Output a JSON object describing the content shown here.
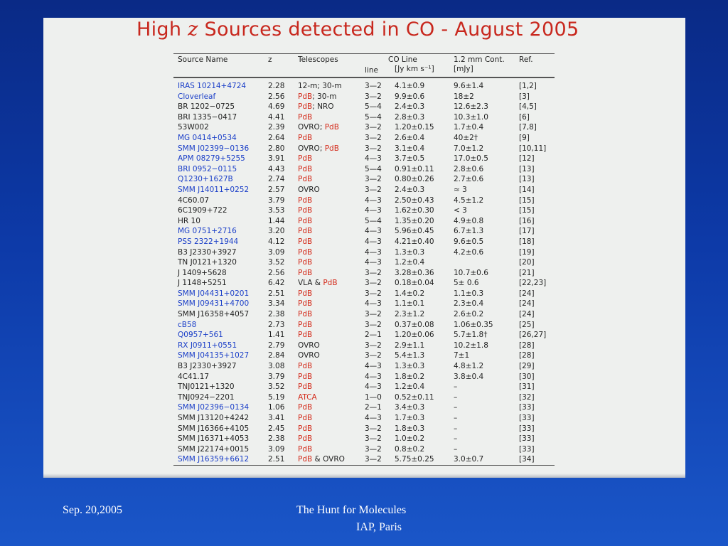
{
  "slide": {
    "title_pre": "High ",
    "title_z": "z",
    "title_post": " Sources detected in CO - August 2005"
  },
  "table": {
    "headers": {
      "source": "Source Name",
      "z": "z",
      "telescopes": "Telescopes",
      "co_line": "CO Line",
      "line": "line",
      "flux_unit": "[Jy km s⁻¹]",
      "cont": "1.2 mm Cont.",
      "cont_unit": "[mJy]",
      "ref": "Ref."
    },
    "rows": [
      {
        "name": "IRAS 10214+4724",
        "blue": true,
        "z": "2.28",
        "tel": [
          {
            "t": "12-m; 30-m",
            "c": ""
          }
        ],
        "line": "3—2",
        "flux": "4.1±0.9",
        "cont": "9.6±1.4",
        "ref": "[1,2]"
      },
      {
        "name": "Cloverleaf",
        "blue": true,
        "z": "2.56",
        "tel": [
          {
            "t": "PdB",
            "c": "red"
          },
          {
            "t": "; 30-m",
            "c": ""
          }
        ],
        "line": "3—2",
        "flux": "9.9±0.6",
        "cont": "18±2",
        "ref": "[3]"
      },
      {
        "name": "BR 1202−0725",
        "blue": false,
        "z": "4.69",
        "tel": [
          {
            "t": "PdB",
            "c": "red"
          },
          {
            "t": "; NRO",
            "c": ""
          }
        ],
        "line": "5—4",
        "flux": "2.4±0.3",
        "cont": "12.6±2.3",
        "ref": "[4,5]"
      },
      {
        "name": "BRI 1335−0417",
        "blue": false,
        "z": "4.41",
        "tel": [
          {
            "t": "PdB",
            "c": "red"
          }
        ],
        "line": "5—4",
        "flux": "2.8±0.3",
        "cont": "10.3±1.0",
        "ref": "[6]"
      },
      {
        "name": "53W002",
        "blue": false,
        "z": "2.39",
        "tel": [
          {
            "t": "OVRO; ",
            "c": ""
          },
          {
            "t": "PdB",
            "c": "red"
          }
        ],
        "line": "3—2",
        "flux": "1.20±0.15",
        "cont": "1.7±0.4",
        "ref": "[7,8]"
      },
      {
        "name": "MG 0414+0534",
        "blue": true,
        "z": "2.64",
        "tel": [
          {
            "t": "PdB",
            "c": "red"
          }
        ],
        "line": "3—2",
        "flux": "2.6±0.4",
        "cont": "40±2†",
        "ref": "[9]"
      },
      {
        "name": "SMM J02399−0136",
        "blue": true,
        "z": "2.80",
        "tel": [
          {
            "t": "OVRO; ",
            "c": ""
          },
          {
            "t": "PdB",
            "c": "red"
          }
        ],
        "line": "3—2",
        "flux": "3.1±0.4",
        "cont": "7.0±1.2",
        "ref": "[10,11]"
      },
      {
        "name": "APM 08279+5255",
        "blue": true,
        "z": "3.91",
        "tel": [
          {
            "t": "PdB",
            "c": "red"
          }
        ],
        "line": "4—3",
        "flux": "3.7±0.5",
        "cont": "17.0±0.5",
        "ref": "[12]"
      },
      {
        "name": "BRI 0952−0115",
        "blue": true,
        "z": "4.43",
        "tel": [
          {
            "t": "PdB",
            "c": "red"
          }
        ],
        "line": "5—4",
        "flux": "0.91±0.11",
        "cont": "2.8±0.6",
        "ref": "[13]"
      },
      {
        "name": "Q1230+1627B",
        "blue": true,
        "z": "2.74",
        "tel": [
          {
            "t": "PdB",
            "c": "red"
          }
        ],
        "line": "3—2",
        "flux": "0.80±0.26",
        "cont": "2.7±0.6",
        "ref": "[13]"
      },
      {
        "name": "SMM J14011+0252",
        "blue": true,
        "z": "2.57",
        "tel": [
          {
            "t": "OVRO",
            "c": ""
          }
        ],
        "line": "3—2",
        "flux": "2.4±0.3",
        "cont": "≈ 3",
        "ref": "[14]"
      },
      {
        "name": "4C60.07",
        "blue": false,
        "z": "3.79",
        "tel": [
          {
            "t": "PdB",
            "c": "red"
          }
        ],
        "line": "4—3",
        "flux": "2.50±0.43",
        "cont": "4.5±1.2",
        "ref": "[15]"
      },
      {
        "name": "6C1909+722",
        "blue": false,
        "z": "3.53",
        "tel": [
          {
            "t": "PdB",
            "c": "red"
          }
        ],
        "line": "4—3",
        "flux": "1.62±0.30",
        "cont": "< 3",
        "ref": "[15]"
      },
      {
        "name": "HR 10",
        "blue": false,
        "z": "1.44",
        "tel": [
          {
            "t": "PdB",
            "c": "red"
          }
        ],
        "line": "5—4",
        "flux": "1.35±0.20",
        "cont": "4.9±0.8",
        "ref": "[16]"
      },
      {
        "name": "MG 0751+2716",
        "blue": true,
        "z": "3.20",
        "tel": [
          {
            "t": "PdB",
            "c": "red"
          }
        ],
        "line": "4—3",
        "flux": "5.96±0.45",
        "cont": "6.7±1.3",
        "ref": "[17]"
      },
      {
        "name": "PSS 2322+1944",
        "blue": true,
        "z": "4.12",
        "tel": [
          {
            "t": "PdB",
            "c": "red"
          }
        ],
        "line": "4—3",
        "flux": "4.21±0.40",
        "cont": "9.6±0.5",
        "ref": "[18]"
      },
      {
        "name": "B3 J2330+3927",
        "blue": false,
        "z": "3.09",
        "tel": [
          {
            "t": "PdB",
            "c": "red"
          }
        ],
        "line": "4—3",
        "flux": "1.3±0.3",
        "cont": "4.2±0.6",
        "ref": "[19]"
      },
      {
        "name": "TN J0121+1320",
        "blue": false,
        "z": "3.52",
        "tel": [
          {
            "t": "PdB",
            "c": "red"
          }
        ],
        "line": "4—3",
        "flux": "1.2±0.4",
        "cont": "",
        "ref": "[20]"
      },
      {
        "name": "J 1409+5628",
        "blue": false,
        "z": "2.56",
        "tel": [
          {
            "t": "PdB",
            "c": "red"
          }
        ],
        "line": "3—2",
        "flux": "3.28±0.36",
        "cont": "10.7±0.6",
        "ref": "[21]"
      },
      {
        "name": "J 1148+5251",
        "blue": false,
        "z": "6.42",
        "tel": [
          {
            "t": "VLA & ",
            "c": ""
          },
          {
            "t": "PdB",
            "c": "red"
          }
        ],
        "line": "3—2",
        "flux": "0.18±0.04",
        "cont": "5± 0.6",
        "ref": "[22,23]"
      },
      {
        "name": "SMM J04431+0201",
        "blue": true,
        "z": "2.51",
        "tel": [
          {
            "t": "PdB",
            "c": "red"
          }
        ],
        "line": "3—2",
        "flux": "1.4±0.2",
        "cont": "1.1±0.3",
        "ref": "[24]"
      },
      {
        "name": "SMM J09431+4700",
        "blue": true,
        "z": "3.34",
        "tel": [
          {
            "t": "PdB",
            "c": "red"
          }
        ],
        "line": "4—3",
        "flux": "1.1±0.1",
        "cont": "2.3±0.4",
        "ref": "[24]"
      },
      {
        "name": "SMM J16358+4057",
        "blue": false,
        "z": "2.38",
        "tel": [
          {
            "t": "PdB",
            "c": "red"
          }
        ],
        "line": "3—2",
        "flux": "2.3±1.2",
        "cont": "2.6±0.2",
        "ref": "[24]"
      },
      {
        "name": "cB58",
        "blue": true,
        "z": "2.73",
        "tel": [
          {
            "t": "PdB",
            "c": "red"
          }
        ],
        "line": "3—2",
        "flux": "0.37±0.08",
        "cont": "1.06±0.35",
        "ref": "[25]"
      },
      {
        "name": "Q0957+561",
        "blue": true,
        "z": "1.41",
        "tel": [
          {
            "t": "PdB",
            "c": "red"
          }
        ],
        "line": "2—1",
        "flux": "1.20±0.06",
        "cont": "5.7±1.8†",
        "ref": "[26,27]"
      },
      {
        "name": "RX J0911+0551",
        "blue": true,
        "z": "2.79",
        "tel": [
          {
            "t": "OVRO",
            "c": ""
          }
        ],
        "line": "3—2",
        "flux": "2.9±1.1",
        "cont": "10.2±1.8",
        "ref": "[28]"
      },
      {
        "name": "SMM J04135+1027",
        "blue": true,
        "z": "2.84",
        "tel": [
          {
            "t": "OVRO",
            "c": ""
          }
        ],
        "line": "3—2",
        "flux": "5.4±1.3",
        "cont": "7±1",
        "ref": "[28]"
      },
      {
        "name": "B3 J2330+3927",
        "blue": false,
        "z": "3.08",
        "tel": [
          {
            "t": "PdB",
            "c": "red"
          }
        ],
        "line": "4—3",
        "flux": "1.3±0.3",
        "cont": "4.8±1.2",
        "ref": "[29]"
      },
      {
        "name": "4C41.17",
        "blue": false,
        "z": "3.79",
        "tel": [
          {
            "t": "PdB",
            "c": "red"
          }
        ],
        "line": "4—3",
        "flux": "1.8±0.2",
        "cont": "3.8±0.4",
        "ref": "[30]"
      },
      {
        "name": "TNJ0121+1320",
        "blue": false,
        "z": "3.52",
        "tel": [
          {
            "t": "PdB",
            "c": "red"
          }
        ],
        "line": "4—3",
        "flux": "1.2±0.4",
        "cont": "–",
        "ref": "[31]"
      },
      {
        "name": "TNJ0924−2201",
        "blue": false,
        "z": "5.19",
        "tel": [
          {
            "t": "ATCA",
            "c": "red"
          }
        ],
        "line": "1—0",
        "flux": "0.52±0.11",
        "cont": "–",
        "ref": "[32]"
      },
      {
        "name": "SMM J02396−0134",
        "blue": true,
        "z": "1.06",
        "tel": [
          {
            "t": "PdB",
            "c": "red"
          }
        ],
        "line": "2—1",
        "flux": "3.4±0.3",
        "cont": "–",
        "ref": "[33]"
      },
      {
        "name": "SMM J13120+4242",
        "blue": false,
        "z": "3.41",
        "tel": [
          {
            "t": "PdB",
            "c": "red"
          }
        ],
        "line": "4—3",
        "flux": "1.7±0.3",
        "cont": "–",
        "ref": "[33]"
      },
      {
        "name": "SMM J16366+4105",
        "blue": false,
        "z": "2.45",
        "tel": [
          {
            "t": "PdB",
            "c": "red"
          }
        ],
        "line": "3—2",
        "flux": "1.8±0.3",
        "cont": "–",
        "ref": "[33]"
      },
      {
        "name": "SMM J16371+4053",
        "blue": false,
        "z": "2.38",
        "tel": [
          {
            "t": "PdB",
            "c": "red"
          }
        ],
        "line": "3—2",
        "flux": "1.0±0.2",
        "cont": "–",
        "ref": "[33]"
      },
      {
        "name": "SMM J22174+0015",
        "blue": false,
        "z": "3.09",
        "tel": [
          {
            "t": "PdB",
            "c": "red"
          }
        ],
        "line": "3—2",
        "flux": "0.8±0.2",
        "cont": "–",
        "ref": "[33]"
      },
      {
        "name": "SMM J16359+6612",
        "blue": true,
        "z": "2.51",
        "tel": [
          {
            "t": "PdB",
            "c": "red"
          },
          {
            "t": " & OVRO",
            "c": ""
          }
        ],
        "line": "3—2",
        "flux": "5.75±0.25",
        "cont": "3.0±0.7",
        "ref": "[34]"
      }
    ]
  },
  "footer": {
    "date": "Sep. 20,2005",
    "talk_title": "The Hunt for Molecules",
    "venue": "IAP, Paris"
  },
  "colors": {
    "title": "#c8281e",
    "link_blue": "#1a3ec8",
    "pdb_red": "#d42a1a"
  }
}
